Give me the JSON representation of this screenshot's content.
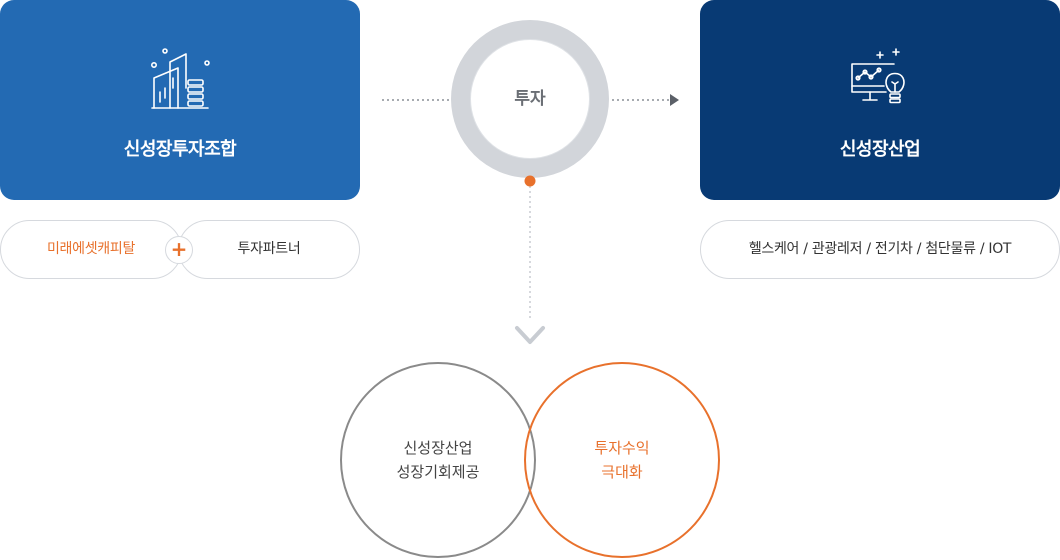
{
  "left_box": {
    "title": "신성장투자조합",
    "icon": "building-coins-icon",
    "color": "#236ab3"
  },
  "right_box": {
    "title": "신성장산업",
    "icon": "monitor-lightbulb-icon",
    "color": "#083a74"
  },
  "partners": {
    "first": "미래에셋캐피탈",
    "plus": "+",
    "second": "투자파트너",
    "accent": "#e8712c"
  },
  "industries": {
    "label": "헬스케어 / 관광레저 / 전기차 / 첨단물류 / IOT"
  },
  "center": {
    "label": "투자"
  },
  "outcomes": {
    "left": {
      "line1": "신성장산업",
      "line2": "성장기회제공"
    },
    "right": {
      "line1": "투자수익",
      "line2": "극대화"
    }
  }
}
